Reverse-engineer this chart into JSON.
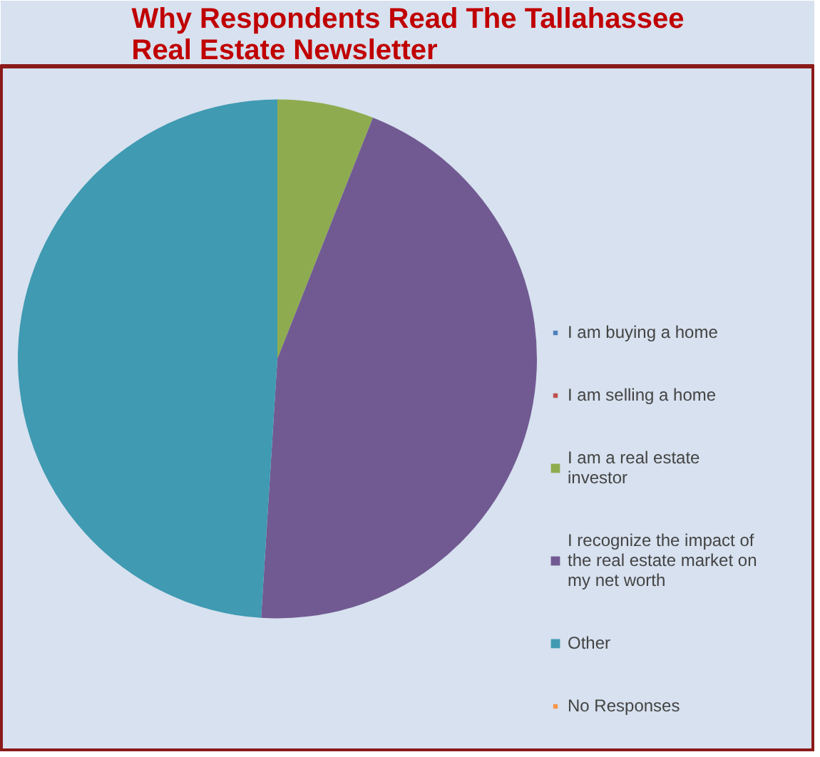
{
  "chart_data": {
    "type": "pie",
    "title": "Why Respondents Read The Tallahassee Real Estate Newsletter",
    "categories": [
      "I am buying a home",
      "I am selling a home",
      "I am a real estate investor",
      "I recognize the impact of the real estate market on my net worth",
      "Other",
      "No Responses"
    ],
    "values": [
      0,
      0,
      6,
      45,
      49,
      0
    ],
    "colors": [
      "#4f81bd",
      "#c0504d",
      "#8eac4f",
      "#715a92",
      "#3f9ab2",
      "#f79646"
    ],
    "legend": "right"
  }
}
